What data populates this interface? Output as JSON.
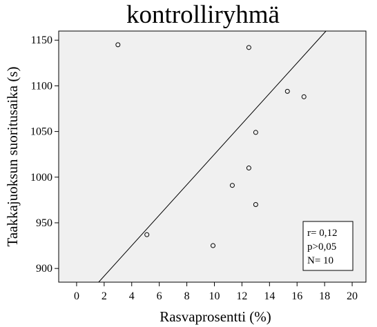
{
  "chart_data": {
    "type": "scatter",
    "title": "kontrolliryhmä",
    "xlabel": "Rasvaprosentti (%)",
    "ylabel": "Taakkajuoksun suoritusaika (s)",
    "xlim": [
      -1.3,
      21
    ],
    "ylim": [
      885,
      1160
    ],
    "xticks": [
      0,
      2,
      4,
      6,
      8,
      10,
      12,
      14,
      16,
      18,
      20
    ],
    "yticks": [
      900,
      950,
      1000,
      1050,
      1100,
      1150
    ],
    "xtick_labels": [
      "0",
      "2",
      "4",
      "6",
      "8",
      "10",
      "12",
      "14",
      "16",
      "18",
      "20"
    ],
    "ytick_labels": [
      "900",
      "950",
      "1000",
      "1050",
      "1100",
      "1150"
    ],
    "points": [
      {
        "x": 3.0,
        "y": 1145
      },
      {
        "x": 5.1,
        "y": 937
      },
      {
        "x": 9.9,
        "y": 925
      },
      {
        "x": 11.3,
        "y": 991
      },
      {
        "x": 12.5,
        "y": 1142
      },
      {
        "x": 12.5,
        "y": 1010
      },
      {
        "x": 13.0,
        "y": 1049
      },
      {
        "x": 13.0,
        "y": 970
      },
      {
        "x": 15.3,
        "y": 1094
      },
      {
        "x": 16.5,
        "y": 1088
      }
    ],
    "fit_line": {
      "x1": 1.6,
      "y1": 885,
      "x2": 18.1,
      "y2": 1160
    },
    "grid": false,
    "background_color": "#f0f0f0",
    "annotation": [
      "r= 0,12",
      "p>0,05",
      "N= 10"
    ],
    "annotation_placement": "bottom-right"
  }
}
